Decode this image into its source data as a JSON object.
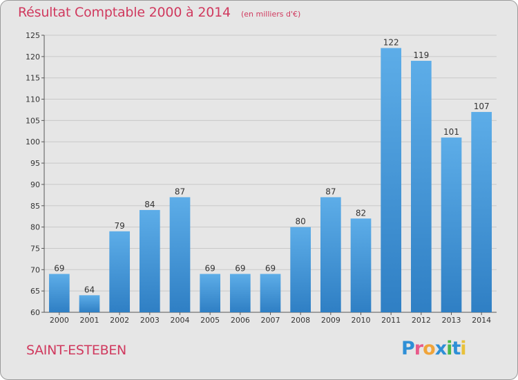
{
  "header": {
    "title": "Résultat Comptable 2000 à 2014",
    "subtitle": "(en milliers d'€)"
  },
  "footer": {
    "commune": "SAINT-ESTEBEN",
    "logo_text": "Proxiti"
  },
  "colors": {
    "title": "#d0395e",
    "bar_top": "#5dade8",
    "bar_bottom": "#2f7fc4",
    "background": "#e6e6e6",
    "gridline": "#c8c8c8"
  },
  "chart_data": {
    "type": "bar",
    "title": "Résultat Comptable 2000 à 2014",
    "subtitle": "(en milliers d'€)",
    "categories": [
      "2000",
      "2001",
      "2002",
      "2003",
      "2004",
      "2005",
      "2006",
      "2007",
      "2008",
      "2009",
      "2010",
      "2011",
      "2012",
      "2013",
      "2014"
    ],
    "values": [
      69,
      64,
      79,
      84,
      87,
      69,
      69,
      69,
      80,
      87,
      82,
      122,
      119,
      101,
      107
    ],
    "ylim": [
      60,
      125
    ],
    "yticks": [
      60,
      65,
      70,
      75,
      80,
      85,
      90,
      95,
      100,
      105,
      110,
      115,
      120,
      125
    ],
    "grid": true,
    "data_labels": true
  }
}
